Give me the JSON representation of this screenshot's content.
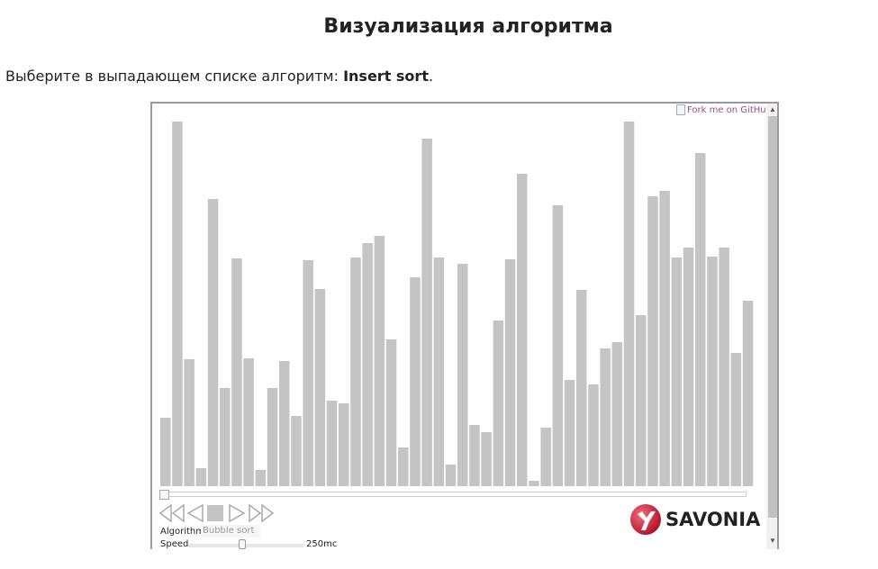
{
  "page": {
    "title": "Визуализация алгоритма",
    "instruction_prefix": "Выберите в выпадающем списке алгоритм: ",
    "instruction_bold": "Insert sort",
    "instruction_suffix": "."
  },
  "visualizer": {
    "github_link": "Fork me on GitHub",
    "algorithm_label": "Algorithm",
    "algorithm_value": "Bubble sort",
    "speed_label": "Speed",
    "speed_value": "250mc",
    "speed_fraction": 0.47,
    "progress_fraction": 0,
    "bar_color": "#c4c4c4",
    "logo_text": "SAVONIA",
    "logo_color": "#c8102e",
    "bar_values": [
      76,
      405,
      141,
      20,
      319,
      109,
      253,
      142,
      18,
      109,
      139,
      78,
      251,
      219,
      95,
      92,
      254,
      270,
      278,
      163,
      43,
      232,
      386,
      254,
      24,
      247,
      68,
      60,
      184,
      252,
      347,
      6,
      65,
      312,
      118,
      218,
      113,
      153,
      160,
      405,
      190,
      322,
      328,
      254,
      265,
      370,
      255,
      265,
      148,
      206
    ]
  },
  "controls": {
    "icons": [
      "rewind-icon",
      "step-back-icon",
      "stop-icon",
      "play-icon",
      "fast-forward-icon"
    ]
  }
}
